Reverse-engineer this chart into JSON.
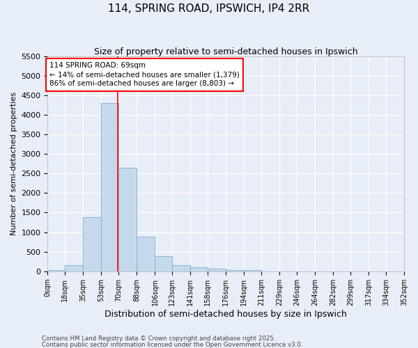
{
  "title": "114, SPRING ROAD, IPSWICH, IP4 2RR",
  "subtitle": "Size of property relative to semi-detached houses in Ipswich",
  "xlabel": "Distribution of semi-detached houses by size in Ipswich",
  "ylabel": "Number of semi-detached properties",
  "annotation_title": "114 SPRING ROAD: 69sqm",
  "annotation_line1": "← 14% of semi-detached houses are smaller (1,379)",
  "annotation_line2": "86% of semi-detached houses are larger (8,803) →",
  "footnote1": "Contains HM Land Registry data © Crown copyright and database right 2025.",
  "footnote2": "Contains public sector information licensed under the Open Government Licence v3.0.",
  "bin_edges": [
    0,
    17,
    35,
    53,
    70,
    88,
    106,
    123,
    141,
    158,
    176,
    194,
    211,
    229,
    246,
    264,
    282,
    299,
    317,
    334,
    352
  ],
  "bin_counts": [
    30,
    150,
    1380,
    4300,
    2650,
    880,
    380,
    150,
    100,
    70,
    40,
    30,
    5,
    3,
    3,
    0,
    0,
    0,
    0,
    0
  ],
  "tick_labels": [
    "0sqm",
    "18sqm",
    "35sqm",
    "53sqm",
    "70sqm",
    "88sqm",
    "106sqm",
    "123sqm",
    "141sqm",
    "158sqm",
    "176sqm",
    "194sqm",
    "211sqm",
    "229sqm",
    "246sqm",
    "264sqm",
    "282sqm",
    "299sqm",
    "317sqm",
    "334sqm",
    "352sqm"
  ],
  "bar_color": "#c6d9ec",
  "bar_edge_color": "#7bafd4",
  "vline_color": "red",
  "vline_x": 69,
  "ylim": [
    0,
    5500
  ],
  "xlim": [
    0,
    352
  ],
  "yticks": [
    0,
    500,
    1000,
    1500,
    2000,
    2500,
    3000,
    3500,
    4000,
    4500,
    5000,
    5500
  ],
  "background_color": "#e8eef8",
  "grid_color": "#ffffff",
  "annotation_box_color": "#ffffff",
  "annotation_box_edge": "red",
  "title_fontsize": 11,
  "subtitle_fontsize": 9,
  "ylabel_fontsize": 8,
  "xlabel_fontsize": 9
}
